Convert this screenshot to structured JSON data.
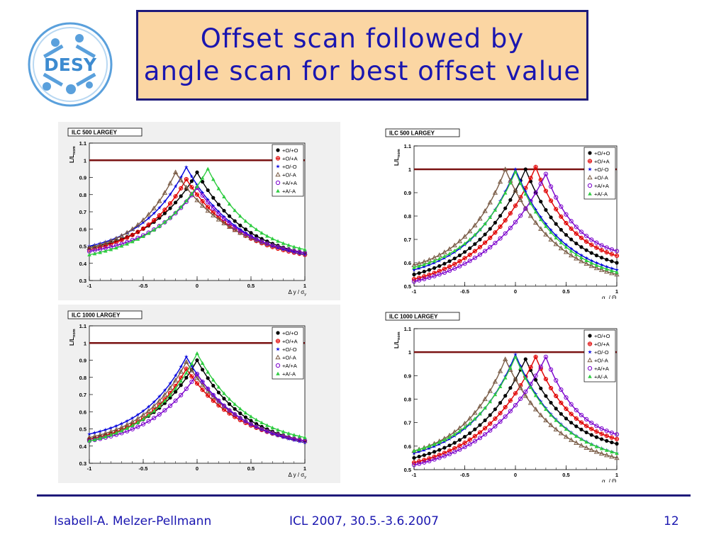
{
  "slide": {
    "title_lines": [
      "Offset scan followed by",
      "angle scan for best offset value"
    ],
    "logo_text": "DESY"
  },
  "footer": {
    "author": "Isabell-A. Melzer-Pellmann",
    "conference": "ICL 2007, 30.5.-3.6.2007",
    "page": "12"
  },
  "chart_data": [
    {
      "type": "line",
      "title": "ILC 500 LARGEY",
      "xlabel": "Δ y / σ",
      "xlabel_sub": "y",
      "ylabel": "L/L",
      "ylabel_sub": "nom",
      "xlim": [
        -1,
        1
      ],
      "ylim": [
        0.3,
        1.1
      ],
      "xticks": [
        "-1",
        "-0.5",
        "0",
        "0.5",
        "1"
      ],
      "yticks": [
        "0.3",
        "0.4",
        "0.5",
        "0.6",
        "0.7",
        "0.8",
        "0.9",
        "1",
        "1.1"
      ],
      "reference_line": 1,
      "legend_position": "top-right",
      "series": [
        {
          "name": "+O/+O",
          "color": "#000000",
          "marker": "dot",
          "peak_x": 0.0,
          "peak_y": 0.93,
          "left_y": 0.49,
          "right_y": 0.46
        },
        {
          "name": "+O/+A",
          "color": "#e00000",
          "marker": "cross",
          "peak_x": -0.1,
          "peak_y": 0.89,
          "left_y": 0.48,
          "right_y": 0.45
        },
        {
          "name": "+O/-O",
          "color": "#0000dd",
          "marker": "star",
          "peak_x": -0.1,
          "peak_y": 0.96,
          "left_y": 0.5,
          "right_y": 0.45
        },
        {
          "name": "+O/-A",
          "color": "#7a5c46",
          "marker": "triangle",
          "peak_x": -0.2,
          "peak_y": 0.93,
          "left_y": 0.49,
          "right_y": 0.46
        },
        {
          "name": "+A/+A",
          "color": "#7a00cc",
          "marker": "circle",
          "peak_x": 0.0,
          "peak_y": 0.84,
          "left_y": 0.47,
          "right_y": 0.46
        },
        {
          "name": "+A/-A",
          "color": "#2ecc40",
          "marker": "tri-fill",
          "peak_x": 0.1,
          "peak_y": 0.95,
          "left_y": 0.45,
          "right_y": 0.48
        }
      ]
    },
    {
      "type": "line",
      "title": "ILC 1000 LARGEY",
      "xlabel": "Δ y / σ",
      "xlabel_sub": "y",
      "ylabel": "L/L",
      "ylabel_sub": "nom",
      "xlim": [
        -1,
        1
      ],
      "ylim": [
        0.3,
        1.1
      ],
      "xticks": [
        "-1",
        "-0.5",
        "0",
        "0.5",
        "1"
      ],
      "yticks": [
        "0.3",
        "0.4",
        "0.5",
        "0.6",
        "0.7",
        "0.8",
        "0.9",
        "1",
        "1.1"
      ],
      "reference_line": 1,
      "legend_position": "top-right",
      "series": [
        {
          "name": "+O/+O",
          "color": "#000000",
          "marker": "dot",
          "peak_x": 0.0,
          "peak_y": 0.9,
          "left_y": 0.44,
          "right_y": 0.43
        },
        {
          "name": "+O/+A",
          "color": "#e00000",
          "marker": "cross",
          "peak_x": -0.1,
          "peak_y": 0.85,
          "left_y": 0.44,
          "right_y": 0.43
        },
        {
          "name": "+O/-O",
          "color": "#0000dd",
          "marker": "star",
          "peak_x": -0.1,
          "peak_y": 0.92,
          "left_y": 0.47,
          "right_y": 0.42
        },
        {
          "name": "+O/-A",
          "color": "#7a5c46",
          "marker": "triangle",
          "peak_x": -0.1,
          "peak_y": 0.89,
          "left_y": 0.45,
          "right_y": 0.43
        },
        {
          "name": "+A/+A",
          "color": "#7a00cc",
          "marker": "circle",
          "peak_x": 0.0,
          "peak_y": 0.82,
          "left_y": 0.43,
          "right_y": 0.43
        },
        {
          "name": "+A/-A",
          "color": "#2ecc40",
          "marker": "tri-fill",
          "peak_x": 0.0,
          "peak_y": 0.94,
          "left_y": 0.43,
          "right_y": 0.45
        }
      ]
    },
    {
      "type": "line",
      "title": "ILC 500 LARGEY",
      "xlabel": "α / Θ",
      "xlabel_sub1": "y",
      "xlabel_sub": "y",
      "ylabel": "L/L",
      "ylabel_sub": "nom",
      "xlim": [
        -1,
        1
      ],
      "ylim": [
        0.5,
        1.1
      ],
      "xticks": [
        "-1",
        "-0.5",
        "0",
        "0.5",
        "1"
      ],
      "yticks": [
        "0.5",
        "0.6",
        "0.7",
        "0.8",
        "0.9",
        "1",
        "1.1"
      ],
      "reference_line": 1,
      "legend_position": "top-right",
      "series": [
        {
          "name": "+O/+O",
          "color": "#000000",
          "marker": "dot",
          "peak_x": 0.1,
          "peak_y": 1.0,
          "left_y": 0.55,
          "right_y": 0.6
        },
        {
          "name": "+O/+A",
          "color": "#e00000",
          "marker": "cross",
          "peak_x": 0.2,
          "peak_y": 1.01,
          "left_y": 0.53,
          "right_y": 0.63
        },
        {
          "name": "+O/-O",
          "color": "#0000dd",
          "marker": "star",
          "peak_x": 0.0,
          "peak_y": 1.0,
          "left_y": 0.57,
          "right_y": 0.57
        },
        {
          "name": "+O/-A",
          "color": "#7a5c46",
          "marker": "triangle",
          "peak_x": -0.1,
          "peak_y": 1.0,
          "left_y": 0.59,
          "right_y": 0.55
        },
        {
          "name": "+A/+A",
          "color": "#7a00cc",
          "marker": "circle",
          "peak_x": 0.3,
          "peak_y": 0.98,
          "left_y": 0.52,
          "right_y": 0.65
        },
        {
          "name": "+A/-A",
          "color": "#2ecc40",
          "marker": "tri-fill",
          "peak_x": 0.0,
          "peak_y": 0.99,
          "left_y": 0.58,
          "right_y": 0.56
        }
      ]
    },
    {
      "type": "line",
      "title": "ILC 1000 LARGEY",
      "xlabel": "α / Θ",
      "xlabel_sub1": "y",
      "xlabel_sub": "y",
      "ylabel": "L/L",
      "ylabel_sub": "nom",
      "xlim": [
        -1,
        1
      ],
      "ylim": [
        0.5,
        1.1
      ],
      "xticks": [
        "-1",
        "-0.5",
        "0",
        "0.5",
        "1"
      ],
      "yticks": [
        "0.5",
        "0.6",
        "0.7",
        "0.8",
        "0.9",
        "1",
        "1.1"
      ],
      "reference_line": 1,
      "legend_position": "top-right",
      "series": [
        {
          "name": "+O/+O",
          "color": "#000000",
          "marker": "dot",
          "peak_x": 0.1,
          "peak_y": 0.97,
          "left_y": 0.55,
          "right_y": 0.61
        },
        {
          "name": "+O/+A",
          "color": "#e00000",
          "marker": "cross",
          "peak_x": 0.2,
          "peak_y": 0.98,
          "left_y": 0.53,
          "right_y": 0.63
        },
        {
          "name": "+O/-O",
          "color": "#0000dd",
          "marker": "star",
          "peak_x": 0.0,
          "peak_y": 0.99,
          "left_y": 0.57,
          "right_y": 0.57
        },
        {
          "name": "+O/-A",
          "color": "#7a5c46",
          "marker": "triangle",
          "peak_x": -0.1,
          "peak_y": 0.97,
          "left_y": 0.58,
          "right_y": 0.55
        },
        {
          "name": "+A/+A",
          "color": "#7a00cc",
          "marker": "circle",
          "peak_x": 0.3,
          "peak_y": 0.98,
          "left_y": 0.52,
          "right_y": 0.65
        },
        {
          "name": "+A/-A",
          "color": "#2ecc40",
          "marker": "tri-fill",
          "peak_x": 0.0,
          "peak_y": 0.98,
          "left_y": 0.58,
          "right_y": 0.57
        }
      ]
    }
  ]
}
